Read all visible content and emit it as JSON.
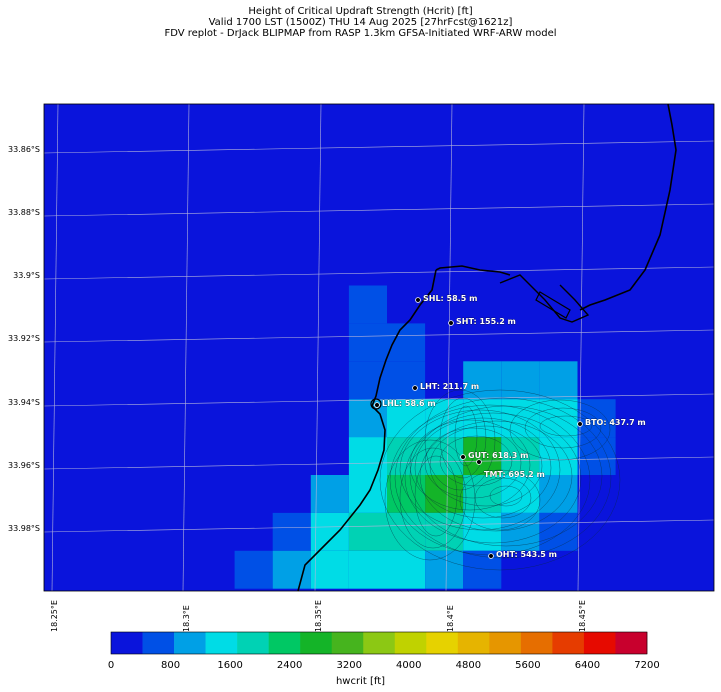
{
  "title": {
    "line1": "Height of Critical Updraft Strength (Hcrit) [ft]",
    "line2": "Valid 1700 LST (1500Z) THU 14 Aug 2025 [27hrFcst@1621z]",
    "line3": "FDV replot - DrJack BLIPMAP from RASP 1.3km GFSA-Initiated WRF-ARW model"
  },
  "axes": {
    "y_ticks": [
      "33.86°S",
      "33.88°S",
      "33.9°S",
      "33.92°S",
      "33.94°S",
      "33.96°S",
      "33.98°S"
    ],
    "x_ticks": [
      "18.25°E",
      "18.3°E",
      "18.35°E",
      "18.4°E",
      "18.45°E"
    ]
  },
  "colors": {
    "background_field": "#0a14dc",
    "grid": "#b4b4dc",
    "coast": "#000000",
    "label_text": "#ffffff"
  },
  "stations": [
    {
      "code": "SHL",
      "label": "SHL: 58.5 m"
    },
    {
      "code": "SHT",
      "label": "SHT: 155.2 m"
    },
    {
      "code": "LHT",
      "label": "LHT: 211.7 m"
    },
    {
      "code": "LHL",
      "label": "LHL: 58.6 m"
    },
    {
      "code": "BTO",
      "label": "BTO: 437.7 m"
    },
    {
      "code": "GUT",
      "label": "GUT: 618.3 m"
    },
    {
      "code": "TMT",
      "label": "TMT: 695.2 m"
    },
    {
      "code": "OHT",
      "label": "OHT: 543.5 m"
    }
  ],
  "colorbar": {
    "label": "hwcrit [ft]",
    "ticks": [
      "0",
      "800",
      "1600",
      "2400",
      "3200",
      "4000",
      "4800",
      "5600",
      "6400",
      "7200"
    ],
    "colors": [
      "#0a14dc",
      "#0050e6",
      "#00a0e6",
      "#00dce6",
      "#00d2b4",
      "#00c864",
      "#14b428",
      "#46b41e",
      "#8cc814",
      "#c0d200",
      "#e6d200",
      "#e6b400",
      "#e69600",
      "#e66e00",
      "#e63c00",
      "#e60a00",
      "#c8002d"
    ]
  },
  "chart_data": {
    "type": "heatmap",
    "units": "ft",
    "cells_level_index": [
      {
        "row": 5,
        "col": 9,
        "level": 1
      },
      {
        "row": 6,
        "col": 9,
        "level": 1
      },
      {
        "row": 6,
        "col": 10,
        "level": 1
      },
      {
        "row": 7,
        "col": 9,
        "level": 1
      },
      {
        "row": 7,
        "col": 10,
        "level": 1
      },
      {
        "row": 7,
        "col": 12,
        "level": 2
      },
      {
        "row": 7,
        "col": 13,
        "level": 2
      },
      {
        "row": 7,
        "col": 14,
        "level": 2
      },
      {
        "row": 8,
        "col": 9,
        "level": 2
      },
      {
        "row": 8,
        "col": 10,
        "level": 3
      },
      {
        "row": 8,
        "col": 11,
        "level": 3
      },
      {
        "row": 8,
        "col": 12,
        "level": 3
      },
      {
        "row": 8,
        "col": 13,
        "level": 3
      },
      {
        "row": 8,
        "col": 14,
        "level": 3
      },
      {
        "row": 8,
        "col": 15,
        "level": 1
      },
      {
        "row": 9,
        "col": 9,
        "level": 3
      },
      {
        "row": 9,
        "col": 10,
        "level": 4
      },
      {
        "row": 9,
        "col": 11,
        "level": 4
      },
      {
        "row": 9,
        "col": 12,
        "level": 6
      },
      {
        "row": 9,
        "col": 13,
        "level": 4
      },
      {
        "row": 9,
        "col": 14,
        "level": 3
      },
      {
        "row": 9,
        "col": 15,
        "level": 1
      },
      {
        "row": 10,
        "col": 8,
        "level": 2
      },
      {
        "row": 10,
        "col": 9,
        "level": 3
      },
      {
        "row": 10,
        "col": 10,
        "level": 5
      },
      {
        "row": 10,
        "col": 11,
        "level": 6
      },
      {
        "row": 10,
        "col": 12,
        "level": 4
      },
      {
        "row": 10,
        "col": 13,
        "level": 3
      },
      {
        "row": 10,
        "col": 14,
        "level": 2
      },
      {
        "row": 11,
        "col": 7,
        "level": 1
      },
      {
        "row": 11,
        "col": 8,
        "level": 3
      },
      {
        "row": 11,
        "col": 9,
        "level": 4
      },
      {
        "row": 11,
        "col": 10,
        "level": 4
      },
      {
        "row": 11,
        "col": 11,
        "level": 4
      },
      {
        "row": 11,
        "col": 12,
        "level": 3
      },
      {
        "row": 11,
        "col": 13,
        "level": 2
      },
      {
        "row": 11,
        "col": 14,
        "level": 1
      },
      {
        "row": 12,
        "col": 6,
        "level": 1
      },
      {
        "row": 12,
        "col": 7,
        "level": 2
      },
      {
        "row": 12,
        "col": 8,
        "level": 3
      },
      {
        "row": 12,
        "col": 9,
        "level": 3
      },
      {
        "row": 12,
        "col": 10,
        "level": 3
      },
      {
        "row": 12,
        "col": 11,
        "level": 2
      },
      {
        "row": 12,
        "col": 12,
        "level": 1
      }
    ]
  }
}
